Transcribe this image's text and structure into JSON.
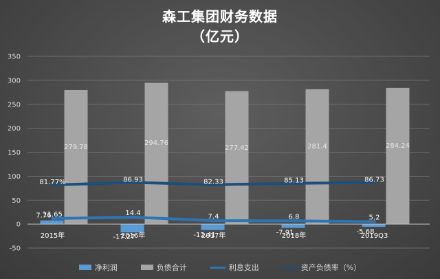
{
  "chart_data": {
    "type": "bar",
    "title": "森工集团财务数据",
    "subtitle": "（亿元）",
    "categories": [
      "2015年",
      "2016年",
      "2017年",
      "2018年",
      "2019Q3"
    ],
    "ylim": [
      -50,
      350
    ],
    "yticks": [
      "350",
      "300",
      "250",
      "200",
      "150",
      "100",
      "50",
      "0",
      "-50"
    ],
    "grid": true,
    "legend_position": "bottom",
    "series": [
      {
        "name": "净利润",
        "kind": "bar",
        "color": "#5b9bd5",
        "values": [
          7.76,
          -17.27,
          -12.41,
          -7.91,
          -5.68
        ]
      },
      {
        "name": "负债合计",
        "kind": "bar",
        "color": "#a5a5a5",
        "values": [
          279.78,
          294.76,
          277.42,
          281.4,
          284.24
        ]
      },
      {
        "name": "利息支出",
        "kind": "line",
        "color": "#2e75b6",
        "values": [
          11.65,
          14.4,
          7.4,
          6.8,
          5.2
        ]
      },
      {
        "name": "资产负债率（%）",
        "kind": "line",
        "color": "#1f4e79",
        "values": [
          81.77,
          86.93,
          82.33,
          85.13,
          86.73
        ]
      }
    ],
    "data_labels": {
      "净利润": [
        "7.76",
        "-17.27",
        "-12.41",
        "-7.91",
        "-5.68"
      ],
      "负债合计": [
        "279.78",
        "294.76",
        "277.42",
        "281.4",
        "284.24"
      ],
      "利息支出": [
        "11.65",
        "14.4",
        "7.4",
        "6.8",
        "5.2"
      ],
      "资产负债率（%）": [
        "81.77%",
        "86.93",
        "82.33",
        "85.13",
        "86.73"
      ]
    }
  }
}
